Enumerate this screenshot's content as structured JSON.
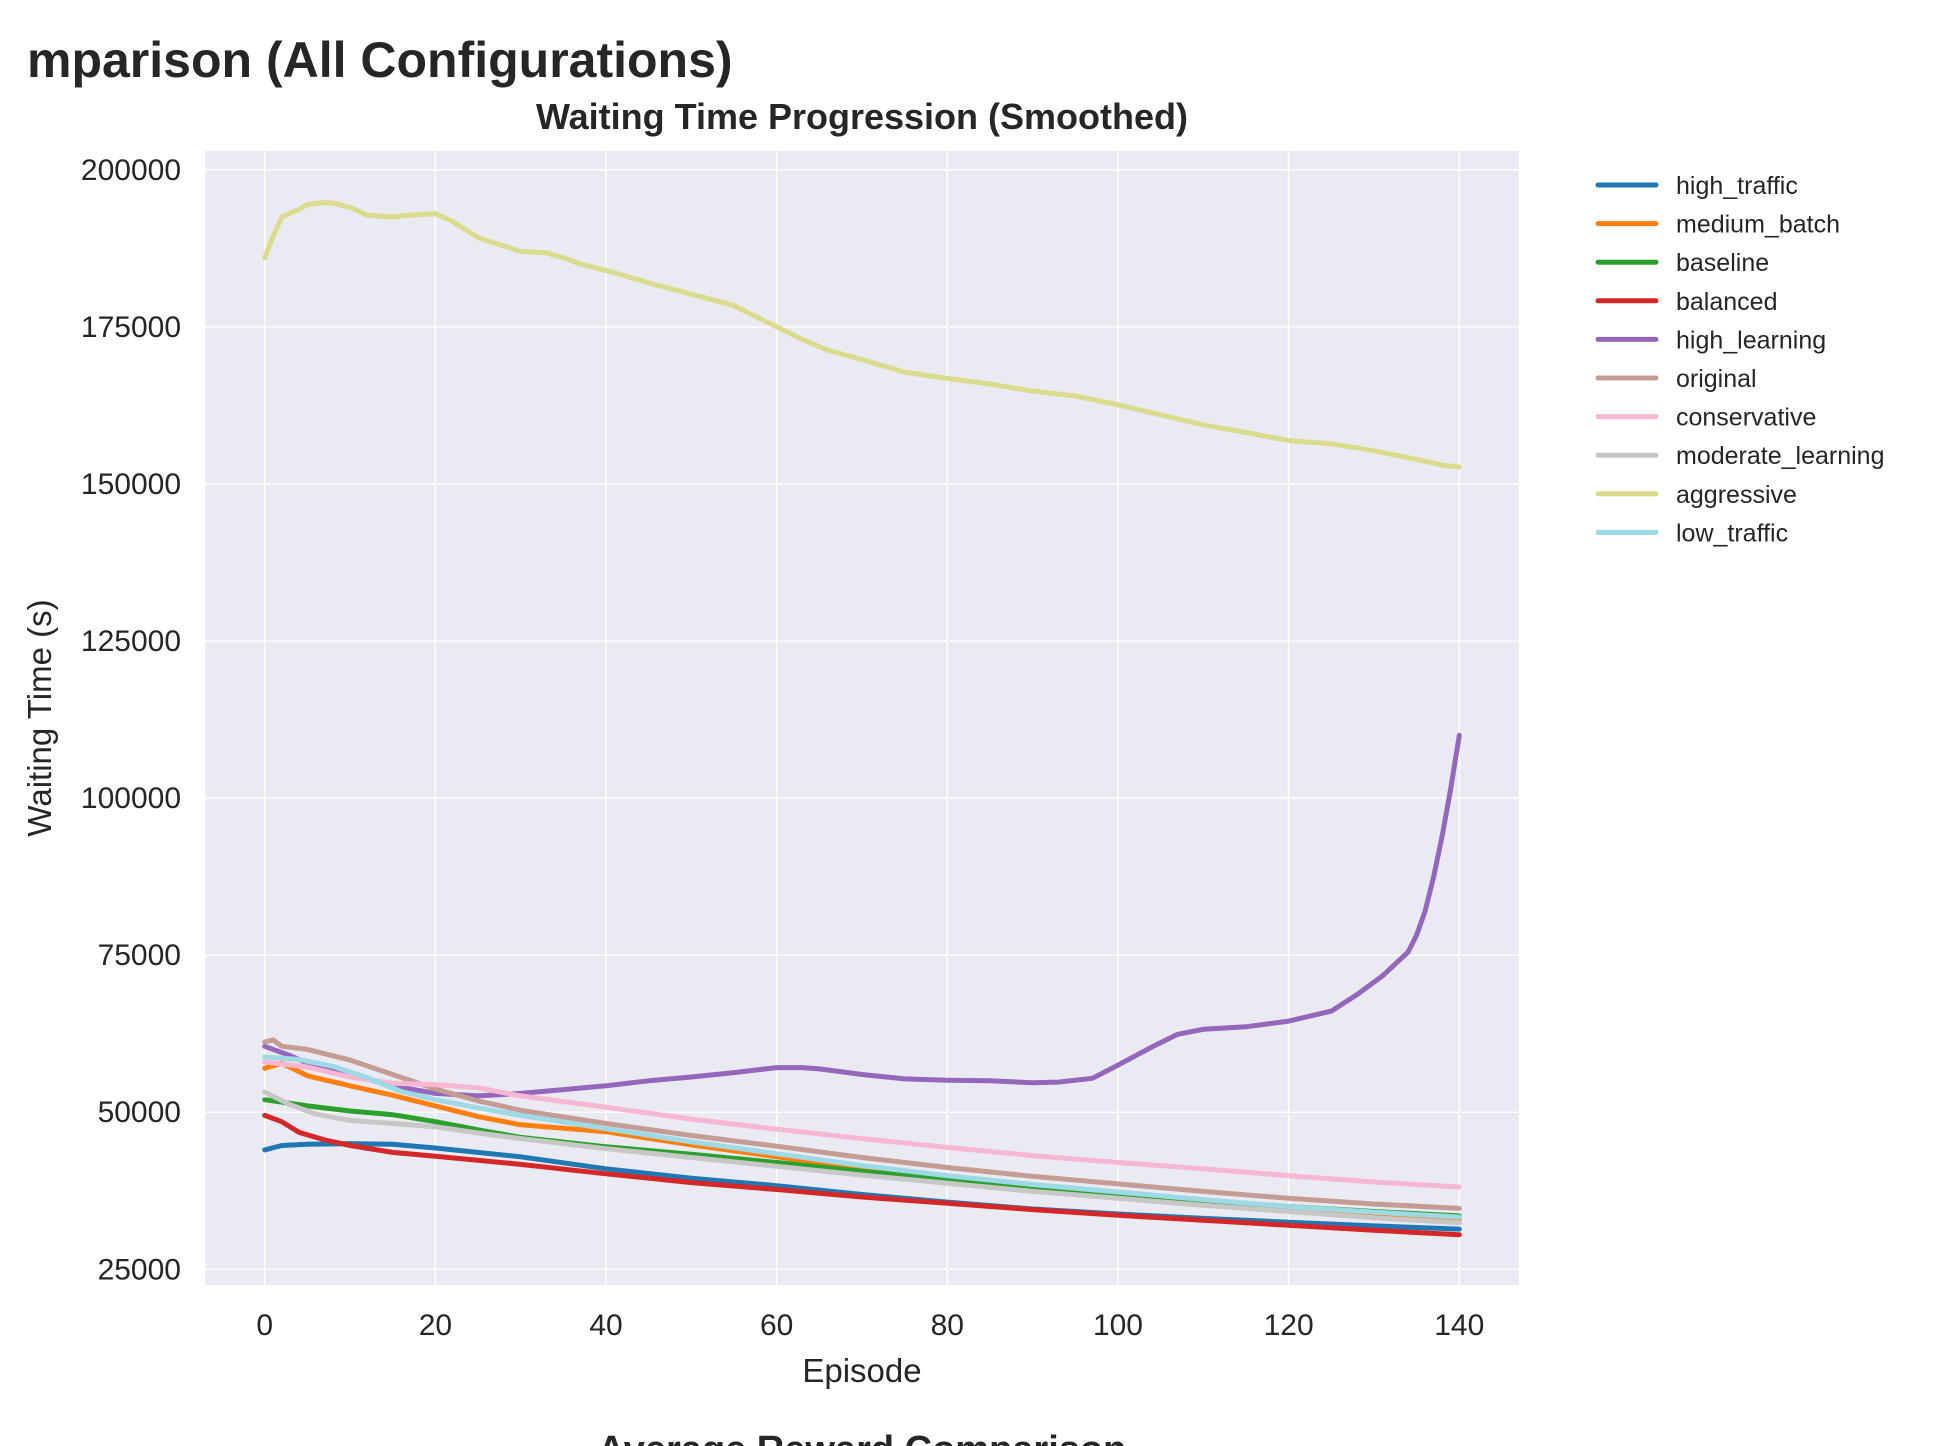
{
  "figure": {
    "suptitle": "mparison (All Configurations)",
    "cut_title": "Average Reward Comparison"
  },
  "chart_data": {
    "type": "line",
    "title": "Waiting Time Progression (Smoothed)",
    "xlabel": "Episode",
    "ylabel": "Waiting Time (s)",
    "xlim": [
      -7,
      147
    ],
    "ylim": [
      22500,
      203000
    ],
    "xticks": [
      0,
      20,
      40,
      60,
      80,
      100,
      120,
      140
    ],
    "yticks": [
      25000,
      50000,
      75000,
      100000,
      125000,
      150000,
      175000,
      200000
    ],
    "grid": true,
    "legend_position": "outside-right-top",
    "background": "#eaeaf2",
    "series": [
      {
        "name": "high_traffic",
        "color": "#1f77b4",
        "points": [
          [
            0,
            44000
          ],
          [
            2,
            44700
          ],
          [
            5,
            44900
          ],
          [
            10,
            45000
          ],
          [
            15,
            44900
          ],
          [
            20,
            44300
          ],
          [
            30,
            42900
          ],
          [
            40,
            41000
          ],
          [
            50,
            39500
          ],
          [
            60,
            38300
          ],
          [
            70,
            36900
          ],
          [
            80,
            35700
          ],
          [
            90,
            34600
          ],
          [
            100,
            33800
          ],
          [
            110,
            33100
          ],
          [
            120,
            32500
          ],
          [
            130,
            31900
          ],
          [
            140,
            31400
          ]
        ]
      },
      {
        "name": "medium_batch",
        "color": "#ff7f0e",
        "points": [
          [
            0,
            57000
          ],
          [
            2,
            57800
          ],
          [
            5,
            55800
          ],
          [
            10,
            54200
          ],
          [
            15,
            52700
          ],
          [
            20,
            51000
          ],
          [
            25,
            49300
          ],
          [
            30,
            48000
          ],
          [
            40,
            46900
          ],
          [
            50,
            44800
          ],
          [
            60,
            42900
          ],
          [
            70,
            40900
          ],
          [
            80,
            39200
          ],
          [
            90,
            37800
          ],
          [
            100,
            36700
          ],
          [
            110,
            35600
          ],
          [
            120,
            34600
          ],
          [
            130,
            33700
          ],
          [
            140,
            33000
          ]
        ]
      },
      {
        "name": "baseline",
        "color": "#2ca02c",
        "points": [
          [
            0,
            52000
          ],
          [
            5,
            51000
          ],
          [
            10,
            50200
          ],
          [
            15,
            49600
          ],
          [
            20,
            48500
          ],
          [
            25,
            47200
          ],
          [
            30,
            46000
          ],
          [
            40,
            44500
          ],
          [
            50,
            43300
          ],
          [
            60,
            42000
          ],
          [
            70,
            40600
          ],
          [
            80,
            39300
          ],
          [
            90,
            38100
          ],
          [
            100,
            37000
          ],
          [
            110,
            36000
          ],
          [
            120,
            35000
          ],
          [
            130,
            34200
          ],
          [
            140,
            33500
          ]
        ]
      },
      {
        "name": "balanced",
        "color": "#d62728",
        "points": [
          [
            0,
            49500
          ],
          [
            2,
            48500
          ],
          [
            4,
            46800
          ],
          [
            7,
            45600
          ],
          [
            10,
            44700
          ],
          [
            15,
            43600
          ],
          [
            20,
            43000
          ],
          [
            30,
            41700
          ],
          [
            40,
            40200
          ],
          [
            50,
            38800
          ],
          [
            60,
            37700
          ],
          [
            70,
            36500
          ],
          [
            80,
            35500
          ],
          [
            90,
            34500
          ],
          [
            100,
            33600
          ],
          [
            110,
            32800
          ],
          [
            120,
            32000
          ],
          [
            130,
            31200
          ],
          [
            140,
            30500
          ]
        ]
      },
      {
        "name": "high_learning",
        "color": "#9467bd",
        "points": [
          [
            0,
            60500
          ],
          [
            3,
            59000
          ],
          [
            6,
            57200
          ],
          [
            10,
            56000
          ],
          [
            15,
            54200
          ],
          [
            20,
            53000
          ],
          [
            25,
            52600
          ],
          [
            30,
            53000
          ],
          [
            35,
            53600
          ],
          [
            40,
            54200
          ],
          [
            45,
            55000
          ],
          [
            50,
            55600
          ],
          [
            55,
            56300
          ],
          [
            60,
            57100
          ],
          [
            63,
            57100
          ],
          [
            65,
            56900
          ],
          [
            70,
            56000
          ],
          [
            75,
            55300
          ],
          [
            80,
            55100
          ],
          [
            85,
            55000
          ],
          [
            90,
            54700
          ],
          [
            93,
            54800
          ],
          [
            97,
            55400
          ],
          [
            100,
            57500
          ],
          [
            104,
            60400
          ],
          [
            107,
            62400
          ],
          [
            110,
            63200
          ],
          [
            115,
            63600
          ],
          [
            120,
            64500
          ],
          [
            125,
            66100
          ],
          [
            128,
            68700
          ],
          [
            131,
            71700
          ],
          [
            134,
            75500
          ],
          [
            135,
            78200
          ],
          [
            136,
            82000
          ],
          [
            137,
            87500
          ],
          [
            138,
            94000
          ],
          [
            139,
            101500
          ],
          [
            140,
            110000
          ]
        ]
      },
      {
        "name": "original",
        "color": "#c49c94",
        "points": [
          [
            0,
            61200
          ],
          [
            1,
            61500
          ],
          [
            2,
            60500
          ],
          [
            5,
            60000
          ],
          [
            10,
            58300
          ],
          [
            15,
            56000
          ],
          [
            20,
            53700
          ],
          [
            25,
            51800
          ],
          [
            30,
            50300
          ],
          [
            40,
            48200
          ],
          [
            50,
            46300
          ],
          [
            60,
            44600
          ],
          [
            70,
            42800
          ],
          [
            80,
            41200
          ],
          [
            90,
            39800
          ],
          [
            100,
            38600
          ],
          [
            110,
            37400
          ],
          [
            120,
            36300
          ],
          [
            130,
            35400
          ],
          [
            140,
            34700
          ]
        ]
      },
      {
        "name": "conservative",
        "color": "#f7b6d2",
        "points": [
          [
            0,
            58000
          ],
          [
            5,
            57200
          ],
          [
            10,
            55600
          ],
          [
            15,
            54600
          ],
          [
            20,
            54400
          ],
          [
            25,
            53900
          ],
          [
            30,
            52600
          ],
          [
            40,
            50800
          ],
          [
            50,
            48900
          ],
          [
            60,
            47300
          ],
          [
            70,
            45800
          ],
          [
            80,
            44400
          ],
          [
            90,
            43100
          ],
          [
            100,
            42000
          ],
          [
            110,
            41000
          ],
          [
            120,
            39900
          ],
          [
            130,
            38900
          ],
          [
            140,
            38100
          ]
        ]
      },
      {
        "name": "moderate_learning",
        "color": "#c7c7c7",
        "points": [
          [
            0,
            53200
          ],
          [
            3,
            51200
          ],
          [
            6,
            49700
          ],
          [
            10,
            48700
          ],
          [
            15,
            48200
          ],
          [
            20,
            47700
          ],
          [
            25,
            46700
          ],
          [
            30,
            45800
          ],
          [
            40,
            44200
          ],
          [
            50,
            42800
          ],
          [
            60,
            41400
          ],
          [
            70,
            40000
          ],
          [
            80,
            38700
          ],
          [
            90,
            37400
          ],
          [
            100,
            36300
          ],
          [
            110,
            35200
          ],
          [
            120,
            34200
          ],
          [
            130,
            33200
          ],
          [
            140,
            32400
          ]
        ]
      },
      {
        "name": "aggressive",
        "color": "#dbdb8d",
        "points": [
          [
            0,
            186000
          ],
          [
            1,
            189500
          ],
          [
            2,
            192500
          ],
          [
            4,
            193700
          ],
          [
            5,
            194500
          ],
          [
            7,
            194800
          ],
          [
            8,
            194700
          ],
          [
            10,
            194000
          ],
          [
            12,
            192800
          ],
          [
            15,
            192500
          ],
          [
            17,
            192800
          ],
          [
            20,
            193000
          ],
          [
            22,
            191800
          ],
          [
            25,
            189200
          ],
          [
            30,
            187000
          ],
          [
            33,
            186800
          ],
          [
            35,
            186000
          ],
          [
            37,
            185000
          ],
          [
            40,
            184000
          ],
          [
            45,
            182000
          ],
          [
            50,
            180200
          ],
          [
            55,
            178400
          ],
          [
            60,
            175000
          ],
          [
            63,
            173000
          ],
          [
            66,
            171300
          ],
          [
            70,
            169800
          ],
          [
            75,
            167800
          ],
          [
            80,
            166800
          ],
          [
            85,
            165900
          ],
          [
            90,
            164800
          ],
          [
            95,
            164000
          ],
          [
            100,
            162600
          ],
          [
            105,
            161000
          ],
          [
            110,
            159400
          ],
          [
            115,
            158200
          ],
          [
            120,
            156900
          ],
          [
            125,
            156400
          ],
          [
            130,
            155300
          ],
          [
            135,
            153900
          ],
          [
            138,
            153000
          ],
          [
            140,
            152700
          ]
        ]
      },
      {
        "name": "low_traffic",
        "color": "#9edae5",
        "points": [
          [
            0,
            58800
          ],
          [
            4,
            58400
          ],
          [
            8,
            57300
          ],
          [
            12,
            55500
          ],
          [
            16,
            53300
          ],
          [
            20,
            52000
          ],
          [
            25,
            50700
          ],
          [
            30,
            49500
          ],
          [
            40,
            47400
          ],
          [
            50,
            45300
          ],
          [
            60,
            43400
          ],
          [
            70,
            41500
          ],
          [
            80,
            39900
          ],
          [
            90,
            38500
          ],
          [
            100,
            37300
          ],
          [
            110,
            36100
          ],
          [
            120,
            35000
          ],
          [
            130,
            34100
          ],
          [
            140,
            33300
          ]
        ]
      }
    ]
  }
}
